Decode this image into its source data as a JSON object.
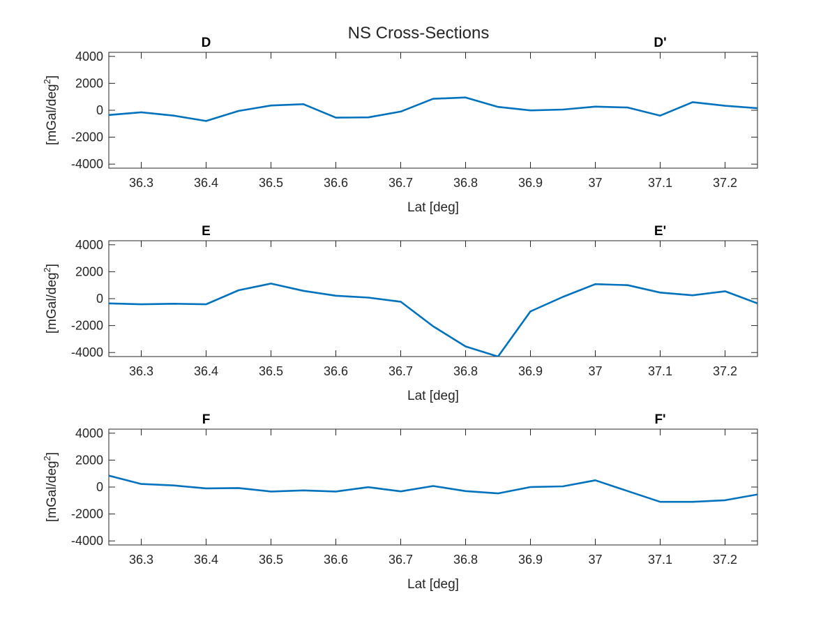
{
  "figure": {
    "title": "NS Cross-Sections"
  },
  "style": {
    "line_color": "#0072BD",
    "axis_color": "#262626",
    "background": "#ffffff"
  },
  "chart_data": [
    {
      "type": "line",
      "title": "",
      "start_label": "D",
      "end_label": "D'",
      "xlabel": "Lat [deg]",
      "ylabel": "[mGal/deg",
      "ylabel_superscript": "2",
      "ylabel_suffix": "]",
      "xlim": [
        36.25,
        37.25
      ],
      "ylim": [
        -4300,
        4300
      ],
      "xticks": [
        36.3,
        36.4,
        36.5,
        36.6,
        36.7,
        36.8,
        36.9,
        37,
        37.1,
        37.2
      ],
      "xtick_labels": [
        "36.3",
        "36.4",
        "36.5",
        "36.6",
        "36.7",
        "36.8",
        "36.9",
        "37",
        "37.1",
        "37.2"
      ],
      "yticks": [
        4000,
        2000,
        0,
        -2000,
        -4000
      ],
      "ytick_labels": [
        "4000",
        "2000",
        "0",
        "-2000",
        "-4000"
      ],
      "grid": false,
      "series": [
        {
          "x": [
            36.25,
            36.3,
            36.35,
            36.4,
            36.45,
            36.5,
            36.55,
            36.6,
            36.65,
            36.7,
            36.75,
            36.8,
            36.85,
            36.9,
            36.95,
            37.0,
            37.05,
            37.1,
            37.15,
            37.2,
            37.25
          ],
          "y": [
            -350,
            -150,
            -400,
            -800,
            -50,
            350,
            450,
            -550,
            -530,
            -100,
            850,
            950,
            250,
            -10,
            50,
            270,
            200,
            -400,
            600,
            330,
            150
          ]
        }
      ]
    },
    {
      "type": "line",
      "title": "",
      "start_label": "E",
      "end_label": "E'",
      "xlabel": "Lat [deg]",
      "ylabel": "[mGal/deg",
      "ylabel_superscript": "2",
      "ylabel_suffix": "]",
      "xlim": [
        36.25,
        37.25
      ],
      "ylim": [
        -4300,
        4300
      ],
      "xticks": [
        36.3,
        36.4,
        36.5,
        36.6,
        36.7,
        36.8,
        36.9,
        37,
        37.1,
        37.2
      ],
      "xtick_labels": [
        "36.3",
        "36.4",
        "36.5",
        "36.6",
        "36.7",
        "36.8",
        "36.9",
        "37",
        "37.1",
        "37.2"
      ],
      "yticks": [
        4000,
        2000,
        0,
        -2000,
        -4000
      ],
      "ytick_labels": [
        "4000",
        "2000",
        "0",
        "-2000",
        "-4000"
      ],
      "grid": false,
      "series": [
        {
          "x": [
            36.25,
            36.3,
            36.35,
            36.4,
            36.45,
            36.5,
            36.55,
            36.6,
            36.65,
            36.7,
            36.75,
            36.8,
            36.85,
            36.9,
            36.95,
            37.0,
            37.05,
            37.1,
            37.15,
            37.2,
            37.25
          ],
          "y": [
            -350,
            -420,
            -380,
            -420,
            620,
            1120,
            580,
            220,
            80,
            -230,
            -2050,
            -3550,
            -4300,
            -950,
            130,
            1080,
            1000,
            450,
            250,
            550,
            -350
          ]
        }
      ]
    },
    {
      "type": "line",
      "title": "",
      "start_label": "F",
      "end_label": "F'",
      "xlabel": "Lat [deg]",
      "ylabel": "[mGal/deg",
      "ylabel_superscript": "2",
      "ylabel_suffix": "]",
      "xlim": [
        36.25,
        37.25
      ],
      "ylim": [
        -4300,
        4300
      ],
      "xticks": [
        36.3,
        36.4,
        36.5,
        36.6,
        36.7,
        36.8,
        36.9,
        37,
        37.1,
        37.2
      ],
      "xtick_labels": [
        "36.3",
        "36.4",
        "36.5",
        "36.6",
        "36.7",
        "36.8",
        "36.9",
        "37",
        "37.1",
        "37.2"
      ],
      "yticks": [
        4000,
        2000,
        0,
        -2000,
        -4000
      ],
      "ytick_labels": [
        "4000",
        "2000",
        "0",
        "-2000",
        "-4000"
      ],
      "grid": false,
      "series": [
        {
          "x": [
            36.25,
            36.3,
            36.35,
            36.4,
            36.45,
            36.5,
            36.55,
            36.6,
            36.65,
            36.7,
            36.75,
            36.8,
            36.85,
            36.9,
            36.95,
            37.0,
            37.05,
            37.1,
            37.15,
            37.2,
            37.25
          ],
          "y": [
            850,
            230,
            120,
            -100,
            -70,
            -330,
            -250,
            -330,
            -10,
            -320,
            80,
            -300,
            -470,
            0,
            50,
            500,
            -300,
            -1100,
            -1100,
            -980,
            -550
          ]
        }
      ]
    }
  ]
}
